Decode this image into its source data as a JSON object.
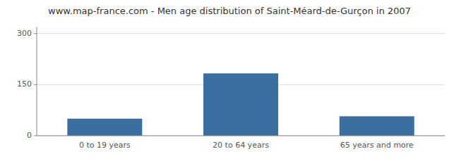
{
  "chart_data": {
    "type": "bar",
    "title": "www.map-france.com - Men age distribution of Saint-Méard-de-Gurçon in 2007",
    "categories": [
      "0 to 19 years",
      "20 to 64 years",
      "65 years and more"
    ],
    "values": [
      50,
      183,
      57
    ],
    "color": "#3a6f9f",
    "ylim": [
      0,
      320
    ],
    "yticks": [
      0,
      150,
      300
    ],
    "grid": true
  }
}
